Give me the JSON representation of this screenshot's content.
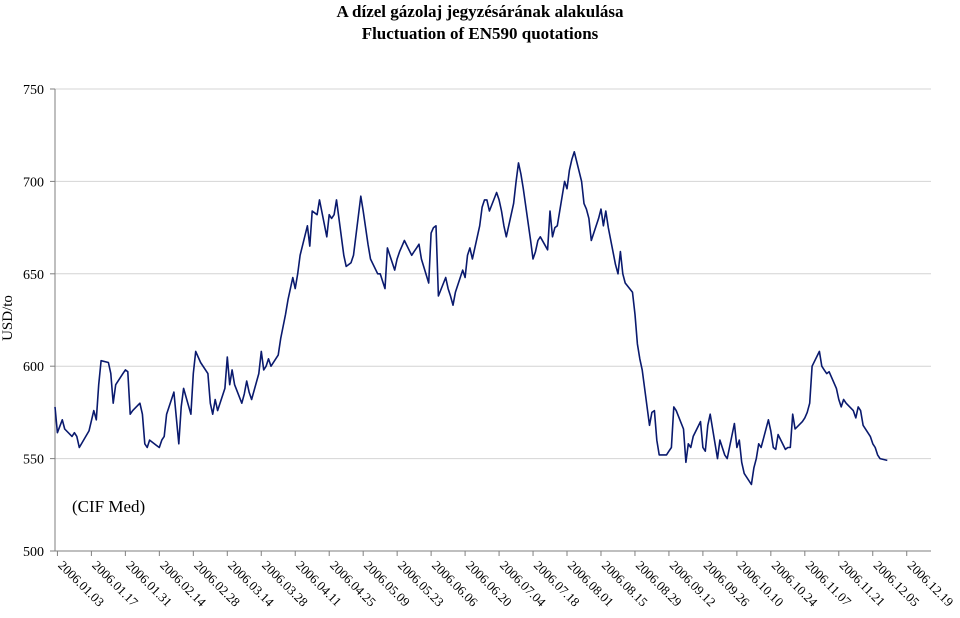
{
  "chart_data": {
    "type": "line",
    "title": [
      "A dízel gázolaj jegyzésárának alakulása",
      "Fluctuation of EN590 quotations"
    ],
    "ylabel": "USD/to",
    "xlabel": "",
    "annotation": "(CIF Med)",
    "ylim": [
      500,
      750
    ],
    "yticks": [
      500,
      550,
      600,
      650,
      700,
      750
    ],
    "grid": true,
    "legend": "none",
    "colors": {
      "line": "#0a1a6e",
      "grid": "#d4d4d4",
      "axis": "#7f7f7f"
    },
    "x_start": "2006.01.02",
    "x_end": "2006.12.29",
    "xticks": [
      "2006.01.03",
      "2006.01.17",
      "2006.01.31",
      "2006.02.14",
      "2006.02.28",
      "2006.03.14",
      "2006.03.28",
      "2006.04.11",
      "2006.04.25",
      "2006.05.09",
      "2006.05.23",
      "2006.06.06",
      "2006.06.20",
      "2006.07.04",
      "2006.07.18",
      "2006.08.01",
      "2006.08.15",
      "2006.08.29",
      "2006.09.12",
      "2006.09.26",
      "2006.10.10",
      "2006.10.24",
      "2006.11.07",
      "2006.11.21",
      "2006.12.05",
      "2006.12.19"
    ],
    "series": [
      {
        "values": [
          [
            "2006.01.02",
            578
          ],
          [
            "2006.01.03",
            564
          ],
          [
            "2006.01.05",
            571
          ],
          [
            "2006.01.06",
            566
          ],
          [
            "2006.01.09",
            562
          ],
          [
            "2006.01.10",
            564
          ],
          [
            "2006.01.11",
            562
          ],
          [
            "2006.01.12",
            556
          ],
          [
            "2006.01.16",
            565
          ],
          [
            "2006.01.18",
            576
          ],
          [
            "2006.01.19",
            571
          ],
          [
            "2006.01.20",
            590
          ],
          [
            "2006.01.21",
            603
          ],
          [
            "2006.01.24",
            602
          ],
          [
            "2006.01.25",
            596
          ],
          [
            "2006.01.26",
            580
          ],
          [
            "2006.01.27",
            590
          ],
          [
            "2006.01.30",
            596
          ],
          [
            "2006.01.31",
            598
          ],
          [
            "2006.02.01",
            597
          ],
          [
            "2006.02.02",
            574
          ],
          [
            "2006.02.03",
            576
          ],
          [
            "2006.02.06",
            580
          ],
          [
            "2006.02.07",
            574
          ],
          [
            "2006.02.08",
            558
          ],
          [
            "2006.02.09",
            556
          ],
          [
            "2006.02.10",
            560
          ],
          [
            "2006.02.13",
            557
          ],
          [
            "2006.02.14",
            556
          ],
          [
            "2006.02.15",
            560
          ],
          [
            "2006.02.16",
            562
          ],
          [
            "2006.02.17",
            574
          ],
          [
            "2006.02.20",
            586
          ],
          [
            "2006.02.22",
            558
          ],
          [
            "2006.02.23",
            578
          ],
          [
            "2006.02.24",
            588
          ],
          [
            "2006.02.27",
            574
          ],
          [
            "2006.02.28",
            596
          ],
          [
            "2006.03.01",
            608
          ],
          [
            "2006.03.03",
            602
          ],
          [
            "2006.03.06",
            596
          ],
          [
            "2006.03.07",
            580
          ],
          [
            "2006.03.08",
            574
          ],
          [
            "2006.03.09",
            582
          ],
          [
            "2006.03.10",
            576
          ],
          [
            "2006.03.13",
            588
          ],
          [
            "2006.03.14",
            605
          ],
          [
            "2006.03.15",
            590
          ],
          [
            "2006.03.16",
            598
          ],
          [
            "2006.03.17",
            590
          ],
          [
            "2006.03.20",
            580
          ],
          [
            "2006.03.21",
            585
          ],
          [
            "2006.03.22",
            592
          ],
          [
            "2006.03.23",
            586
          ],
          [
            "2006.03.24",
            582
          ],
          [
            "2006.03.27",
            596
          ],
          [
            "2006.03.28",
            608
          ],
          [
            "2006.03.29",
            598
          ],
          [
            "2006.03.30",
            600
          ],
          [
            "2006.03.31",
            604
          ],
          [
            "2006.04.01",
            600
          ],
          [
            "2006.04.04",
            606
          ],
          [
            "2006.04.05",
            615
          ],
          [
            "2006.04.07",
            628
          ],
          [
            "2006.04.08",
            636
          ],
          [
            "2006.04.10",
            648
          ],
          [
            "2006.04.11",
            642
          ],
          [
            "2006.04.12",
            650
          ],
          [
            "2006.04.13",
            660
          ],
          [
            "2006.04.16",
            676
          ],
          [
            "2006.04.17",
            665
          ],
          [
            "2006.04.18",
            684
          ],
          [
            "2006.04.19",
            683
          ],
          [
            "2006.04.20",
            682
          ],
          [
            "2006.04.21",
            690
          ],
          [
            "2006.04.24",
            670
          ],
          [
            "2006.04.25",
            682
          ],
          [
            "2006.04.26",
            680
          ],
          [
            "2006.04.27",
            682
          ],
          [
            "2006.04.28",
            690
          ],
          [
            "2006.05.01",
            660
          ],
          [
            "2006.05.02",
            654
          ],
          [
            "2006.05.03",
            655
          ],
          [
            "2006.05.04",
            656
          ],
          [
            "2006.05.05",
            660
          ],
          [
            "2006.05.08",
            692
          ],
          [
            "2006.05.09",
            684
          ],
          [
            "2006.05.10",
            675
          ],
          [
            "2006.05.11",
            666
          ],
          [
            "2006.05.12",
            658
          ],
          [
            "2006.05.15",
            650
          ],
          [
            "2006.05.16",
            650
          ],
          [
            "2006.05.17",
            646
          ],
          [
            "2006.05.18",
            642
          ],
          [
            "2006.05.19",
            664
          ],
          [
            "2006.05.22",
            652
          ],
          [
            "2006.05.23",
            658
          ],
          [
            "2006.05.24",
            662
          ],
          [
            "2006.05.25",
            665
          ],
          [
            "2006.05.26",
            668
          ],
          [
            "2006.05.29",
            660
          ],
          [
            "2006.05.30",
            662
          ],
          [
            "2006.05.31",
            664
          ],
          [
            "2006.06.01",
            666
          ],
          [
            "2006.06.02",
            658
          ],
          [
            "2006.06.05",
            645
          ],
          [
            "2006.06.06",
            672
          ],
          [
            "2006.06.07",
            675
          ],
          [
            "2006.06.08",
            676
          ],
          [
            "2006.06.09",
            638
          ],
          [
            "2006.06.12",
            648
          ],
          [
            "2006.06.13",
            642
          ],
          [
            "2006.06.14",
            638
          ],
          [
            "2006.06.15",
            633
          ],
          [
            "2006.06.16",
            640
          ],
          [
            "2006.06.19",
            652
          ],
          [
            "2006.06.20",
            648
          ],
          [
            "2006.06.21",
            660
          ],
          [
            "2006.06.22",
            664
          ],
          [
            "2006.06.23",
            658
          ],
          [
            "2006.06.26",
            676
          ],
          [
            "2006.06.27",
            686
          ],
          [
            "2006.06.28",
            690
          ],
          [
            "2006.06.29",
            690
          ],
          [
            "2006.06.30",
            684
          ],
          [
            "2006.07.03",
            694
          ],
          [
            "2006.07.04",
            690
          ],
          [
            "2006.07.05",
            684
          ],
          [
            "2006.07.06",
            676
          ],
          [
            "2006.07.07",
            670
          ],
          [
            "2006.07.10",
            688
          ],
          [
            "2006.07.11",
            700
          ],
          [
            "2006.07.12",
            710
          ],
          [
            "2006.07.13",
            704
          ],
          [
            "2006.07.14",
            696
          ],
          [
            "2006.07.17",
            668
          ],
          [
            "2006.07.18",
            658
          ],
          [
            "2006.07.19",
            662
          ],
          [
            "2006.07.20",
            668
          ],
          [
            "2006.07.21",
            670
          ],
          [
            "2006.07.24",
            663
          ],
          [
            "2006.07.25",
            684
          ],
          [
            "2006.07.26",
            670
          ],
          [
            "2006.07.27",
            675
          ],
          [
            "2006.07.28",
            676
          ],
          [
            "2006.07.31",
            700
          ],
          [
            "2006.08.01",
            696
          ],
          [
            "2006.08.02",
            706
          ],
          [
            "2006.08.03",
            712
          ],
          [
            "2006.08.04",
            716
          ],
          [
            "2006.08.07",
            700
          ],
          [
            "2006.08.08",
            688
          ],
          [
            "2006.08.09",
            685
          ],
          [
            "2006.08.10",
            680
          ],
          [
            "2006.08.11",
            668
          ],
          [
            "2006.08.14",
            680
          ],
          [
            "2006.08.15",
            685
          ],
          [
            "2006.08.16",
            676
          ],
          [
            "2006.08.17",
            684
          ],
          [
            "2006.08.18",
            675
          ],
          [
            "2006.08.21",
            655
          ],
          [
            "2006.08.22",
            650
          ],
          [
            "2006.08.23",
            662
          ],
          [
            "2006.08.24",
            650
          ],
          [
            "2006.08.25",
            645
          ],
          [
            "2006.08.28",
            640
          ],
          [
            "2006.08.29",
            628
          ],
          [
            "2006.08.30",
            612
          ],
          [
            "2006.08.31",
            604
          ],
          [
            "2006.09.01",
            598
          ],
          [
            "2006.09.04",
            568
          ],
          [
            "2006.09.05",
            575
          ],
          [
            "2006.09.06",
            576
          ],
          [
            "2006.09.07",
            560
          ],
          [
            "2006.09.08",
            552
          ],
          [
            "2006.09.11",
            552
          ],
          [
            "2006.09.12",
            554
          ],
          [
            "2006.09.13",
            556
          ],
          [
            "2006.09.14",
            578
          ],
          [
            "2006.09.15",
            576
          ],
          [
            "2006.09.18",
            566
          ],
          [
            "2006.09.19",
            548
          ],
          [
            "2006.09.20",
            558
          ],
          [
            "2006.09.21",
            556
          ],
          [
            "2006.09.22",
            562
          ],
          [
            "2006.09.25",
            570
          ],
          [
            "2006.09.26",
            556
          ],
          [
            "2006.09.27",
            554
          ],
          [
            "2006.09.28",
            568
          ],
          [
            "2006.09.29",
            574
          ],
          [
            "2006.10.02",
            550
          ],
          [
            "2006.10.03",
            560
          ],
          [
            "2006.10.04",
            556
          ],
          [
            "2006.10.05",
            552
          ],
          [
            "2006.10.06",
            550
          ],
          [
            "2006.10.09",
            569
          ],
          [
            "2006.10.10",
            556
          ],
          [
            "2006.10.11",
            560
          ],
          [
            "2006.10.12",
            548
          ],
          [
            "2006.10.13",
            542
          ],
          [
            "2006.10.16",
            536
          ],
          [
            "2006.10.17",
            545
          ],
          [
            "2006.10.18",
            550
          ],
          [
            "2006.10.19",
            558
          ],
          [
            "2006.10.20",
            556
          ],
          [
            "2006.10.23",
            571
          ],
          [
            "2006.10.24",
            565
          ],
          [
            "2006.10.25",
            556
          ],
          [
            "2006.10.26",
            555
          ],
          [
            "2006.10.27",
            563
          ],
          [
            "2006.10.30",
            555
          ],
          [
            "2006.10.31",
            556
          ],
          [
            "2006.11.01",
            556
          ],
          [
            "2006.11.02",
            574
          ],
          [
            "2006.11.03",
            566
          ],
          [
            "2006.11.06",
            570
          ],
          [
            "2006.11.07",
            572
          ],
          [
            "2006.11.08",
            575
          ],
          [
            "2006.11.09",
            580
          ],
          [
            "2006.11.10",
            600
          ],
          [
            "2006.11.13",
            608
          ],
          [
            "2006.11.14",
            600
          ],
          [
            "2006.11.15",
            598
          ],
          [
            "2006.11.16",
            596
          ],
          [
            "2006.11.17",
            597
          ],
          [
            "2006.11.20",
            588
          ],
          [
            "2006.11.21",
            582
          ],
          [
            "2006.11.22",
            578
          ],
          [
            "2006.11.23",
            582
          ],
          [
            "2006.11.24",
            580
          ],
          [
            "2006.11.27",
            576
          ],
          [
            "2006.11.28",
            572
          ],
          [
            "2006.11.29",
            578
          ],
          [
            "2006.11.30",
            576
          ],
          [
            "2006.12.01",
            568
          ],
          [
            "2006.12.04",
            562
          ],
          [
            "2006.12.05",
            558
          ],
          [
            "2006.12.06",
            556
          ],
          [
            "2006.12.07",
            552
          ],
          [
            "2006.12.08",
            550
          ],
          [
            "2006.12.11",
            549
          ]
        ]
      }
    ]
  }
}
